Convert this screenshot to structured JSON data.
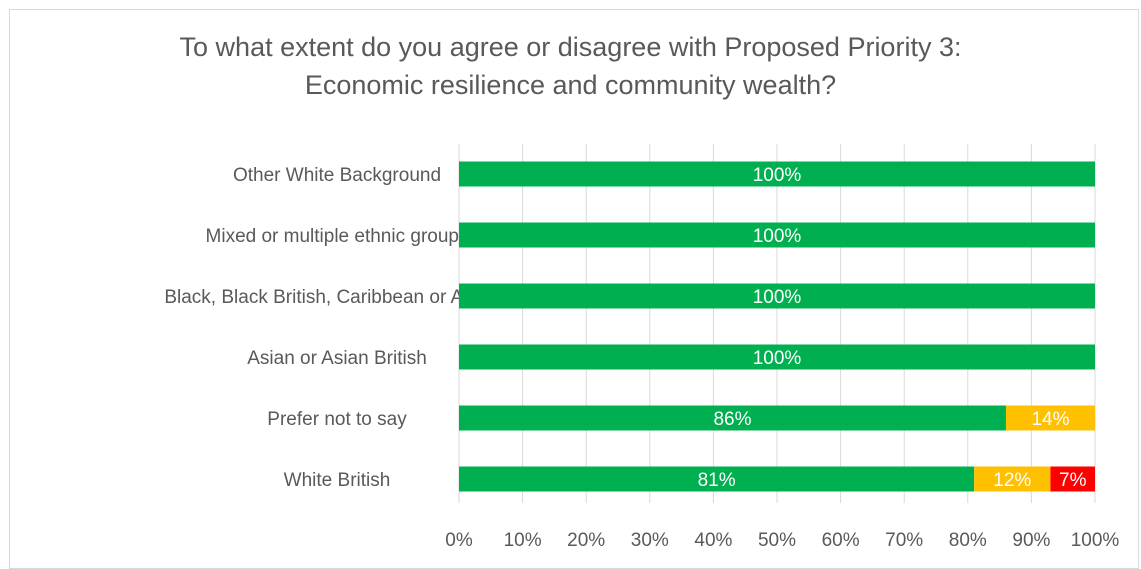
{
  "chart_data": {
    "type": "bar",
    "orientation": "horizontal",
    "stacked": true,
    "title_lines": [
      "To what extent do you agree or disagree with Proposed Priority 3:",
      "Economic resilience and community wealth?"
    ],
    "categories": [
      "Other White Background",
      "Mixed or multiple ethnic groups",
      "Black, Black British, Caribbean or African",
      "Asian or Asian British",
      "Prefer not to say",
      "White British"
    ],
    "series": [
      {
        "color": "#00b050",
        "values": [
          100,
          100,
          100,
          100,
          86,
          81
        ],
        "labels": [
          "100%",
          "100%",
          "100%",
          "100%",
          "86%",
          "81%"
        ]
      },
      {
        "color": "#ffc000",
        "values": [
          0,
          0,
          0,
          0,
          14,
          12
        ],
        "labels": [
          "",
          "",
          "",
          "",
          "14%",
          "12%"
        ]
      },
      {
        "color": "#ff0000",
        "values": [
          0,
          0,
          0,
          0,
          0,
          7
        ],
        "labels": [
          "",
          "",
          "",
          "",
          "",
          "7%"
        ]
      }
    ],
    "xlim": [
      0,
      100
    ],
    "xticks": [
      "0%",
      "10%",
      "20%",
      "30%",
      "40%",
      "50%",
      "60%",
      "70%",
      "80%",
      "90%",
      "100%"
    ],
    "grid": true,
    "legend": "none"
  }
}
